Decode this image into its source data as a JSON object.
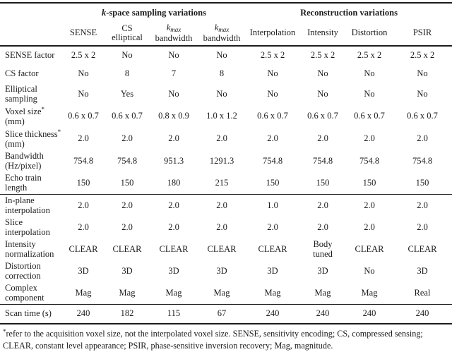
{
  "colors": {
    "text": "#1c1c1c",
    "rule": "#1c1c1c",
    "background": "#ffffff"
  },
  "table": {
    "group_headers": [
      {
        "label": "[i]k[/i]-space sampling variations",
        "span": 4
      },
      {
        "label": "Reconstruction variations",
        "span": 4
      }
    ],
    "column_headers": [
      "SENSE",
      "CS\nelliptical",
      "[i]k[sub]max[/sub][/i]\nbandwidth",
      "[i]k[sub]max[/sub][/i]\nbandwidth",
      "Interpolation",
      "Intensity",
      "Distortion",
      "PSIR"
    ],
    "sections": [
      {
        "rows": [
          {
            "label": "SENSE factor",
            "cells": [
              "2.5 x 2",
              "No",
              "No",
              "No",
              "2.5 x 2",
              "2.5 x 2",
              "2.5 x 2",
              "2.5 x 2"
            ],
            "bold": []
          },
          {
            "label": "CS factor",
            "cells": [
              "No",
              "8",
              "7",
              "8",
              "No",
              "No",
              "No",
              "No"
            ],
            "bold": [
              1
            ]
          },
          {
            "label": "Elliptical\nsampling",
            "cells": [
              "No",
              "Yes",
              "No",
              "No",
              "No",
              "No",
              "No",
              "No"
            ],
            "bold": [
              1
            ]
          },
          {
            "label": "Voxel size[sup]*[/sup]\n(mm)",
            "cells": [
              "0.6 x 0.7",
              "0.6 x 0.7",
              "0.8 x 0.9",
              "1.0 x 1.2",
              "0.6 x 0.7",
              "0.6 x 0.7",
              "0.6 x 0.7",
              "0.6 x 0.7"
            ],
            "bold": [
              2,
              3
            ]
          },
          {
            "label": "Slice thickness[sup]*[/sup]\n(mm)",
            "cells": [
              "2.0",
              "2.0",
              "2.0",
              "2.0",
              "2.0",
              "2.0",
              "2.0",
              "2.0"
            ],
            "bold": []
          },
          {
            "label": "Bandwidth\n(Hz/pixel)",
            "cells": [
              "754.8",
              "754.8",
              "951.3",
              "1291.3",
              "754.8",
              "754.8",
              "754.8",
              "754.8"
            ],
            "bold": [
              2,
              3
            ]
          },
          {
            "label": "Echo train\nlength",
            "cells": [
              "150",
              "150",
              "180",
              "215",
              "150",
              "150",
              "150",
              "150"
            ],
            "bold": []
          }
        ]
      },
      {
        "rows": [
          {
            "label": "In-plane\ninterpolation",
            "cells": [
              "2.0",
              "2.0",
              "2.0",
              "2.0",
              "1.0",
              "2.0",
              "2.0",
              "2.0"
            ],
            "bold": [
              4
            ]
          },
          {
            "label": "Slice\ninterpolation",
            "cells": [
              "2.0",
              "2.0",
              "2.0",
              "2.0",
              "2.0",
              "2.0",
              "2.0",
              "2.0"
            ],
            "bold": []
          },
          {
            "label": "Intensity\nnormalization",
            "cells": [
              "CLEAR",
              "CLEAR",
              "CLEAR",
              "CLEAR",
              "CLEAR",
              "Body\ntuned",
              "CLEAR",
              "CLEAR"
            ],
            "bold": [
              5
            ]
          },
          {
            "label": "Distortion\ncorrection",
            "cells": [
              "3D",
              "3D",
              "3D",
              "3D",
              "3D",
              "3D",
              "No",
              "3D"
            ],
            "bold": [
              6
            ]
          },
          {
            "label": "Complex\ncomponent",
            "cells": [
              "Mag",
              "Mag",
              "Mag",
              "Mag",
              "Mag",
              "Mag",
              "Mag",
              "Real"
            ],
            "bold": [
              7
            ]
          }
        ]
      },
      {
        "rows": [
          {
            "label": "Scan time (s)",
            "cells": [
              "240",
              "182",
              "115",
              "67",
              "240",
              "240",
              "240",
              "240"
            ],
            "bold": []
          }
        ]
      }
    ],
    "footnote": "[sup]*[/sup]refer to the acquisition voxel size, not the interpolated voxel size. SENSE, sensitivity encoding; CS, compressed sensing; CLEAR, constant level appearance; PSIR, phase-sensitive inversion recovery; Mag, magnitude."
  }
}
